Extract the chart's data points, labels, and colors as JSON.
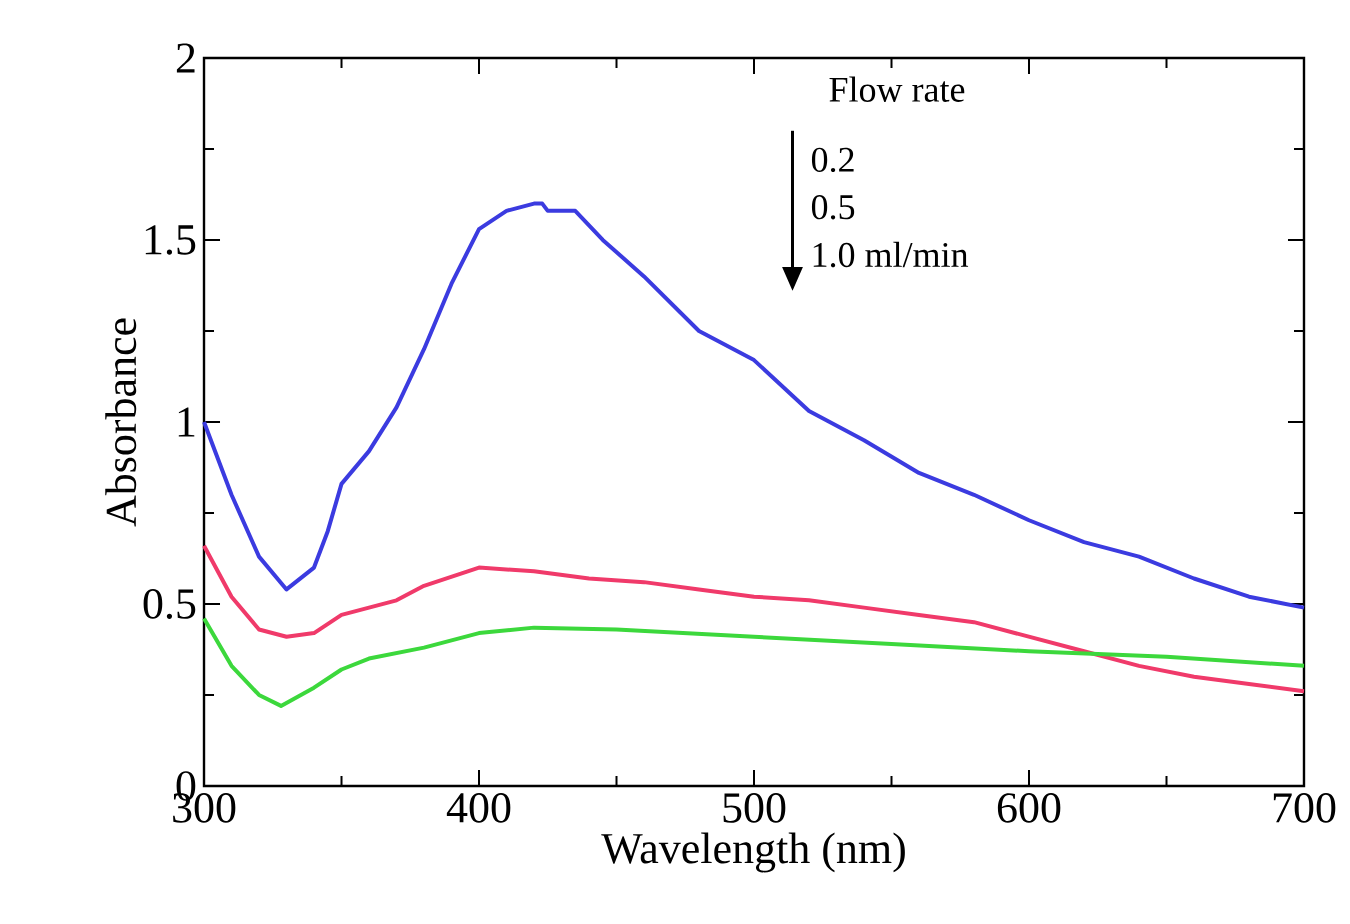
{
  "chart_data": {
    "type": "line",
    "xlabel": "Wavelength (nm)",
    "ylabel": "Absorbance",
    "xlim": [
      300,
      700
    ],
    "ylim": [
      0,
      2
    ],
    "xticks": [
      300,
      400,
      500,
      600,
      700
    ],
    "yticks": [
      0,
      0.5,
      1,
      1.5,
      2
    ],
    "grid": false,
    "marker": "none",
    "line_style": "solid",
    "annotations": [
      "Flow rate",
      "0.2",
      "0.5",
      "1.0 ml/min"
    ],
    "series": [
      {
        "color": "#3b3be0",
        "x": [
          300,
          310,
          320,
          330,
          340,
          345,
          350,
          360,
          370,
          380,
          390,
          400,
          410,
          420,
          423,
          425,
          435,
          445,
          460,
          480,
          500,
          520,
          540,
          560,
          580,
          600,
          620,
          640,
          660,
          680,
          700
        ],
        "values": [
          1.0,
          0.8,
          0.63,
          0.54,
          0.6,
          0.7,
          0.83,
          0.92,
          1.04,
          1.2,
          1.38,
          1.53,
          1.58,
          1.6,
          1.6,
          1.58,
          1.58,
          1.5,
          1.4,
          1.25,
          1.17,
          1.03,
          0.95,
          0.86,
          0.8,
          0.73,
          0.67,
          0.63,
          0.57,
          0.52,
          0.49
        ]
      },
      {
        "color": "#f03a6a",
        "x": [
          300,
          310,
          320,
          330,
          340,
          350,
          360,
          370,
          380,
          400,
          420,
          440,
          460,
          480,
          500,
          520,
          540,
          560,
          580,
          600,
          620,
          640,
          660,
          680,
          700
        ],
        "values": [
          0.66,
          0.52,
          0.43,
          0.41,
          0.42,
          0.47,
          0.49,
          0.51,
          0.55,
          0.6,
          0.59,
          0.57,
          0.56,
          0.54,
          0.52,
          0.51,
          0.49,
          0.47,
          0.45,
          0.41,
          0.37,
          0.33,
          0.3,
          0.28,
          0.26
        ]
      },
      {
        "color": "#3cd83c",
        "x": [
          300,
          310,
          320,
          328,
          340,
          350,
          360,
          380,
          400,
          420,
          450,
          500,
          550,
          600,
          650,
          700
        ],
        "values": [
          0.46,
          0.33,
          0.25,
          0.22,
          0.27,
          0.32,
          0.35,
          0.38,
          0.42,
          0.435,
          0.43,
          0.41,
          0.39,
          0.37,
          0.355,
          0.33
        ]
      }
    ]
  }
}
